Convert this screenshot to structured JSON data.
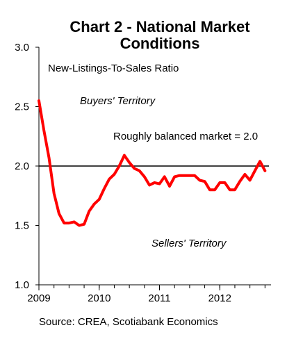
{
  "title_line1": "Chart 2 - National Market",
  "title_line2": "Conditions",
  "source": "Source: CREA, Scotiabank Economics",
  "chart_data": {
    "type": "line",
    "title": "Chart 2 - National Market Conditions",
    "xlabel": "",
    "ylabel": "",
    "ylim": [
      1.0,
      3.0
    ],
    "xlim": [
      2009.0,
      2012.85
    ],
    "y_ticks": [
      "1.0",
      "1.5",
      "2.0",
      "2.5",
      "3.0"
    ],
    "x_ticks": [
      "2009",
      "2010",
      "2011",
      "2012"
    ],
    "grid": false,
    "annotations": {
      "series_label": "New-Listings-To-Sales Ratio",
      "buyers": "Buyers' Territory",
      "balanced": "Roughly balanced market = 2.0",
      "sellers": "Sellers' Territory"
    },
    "reference_line": {
      "y": 2.0,
      "color": "#000000"
    },
    "series": [
      {
        "color": "#ff0000",
        "x": [
          2009.0,
          2009.083,
          2009.167,
          2009.25,
          2009.333,
          2009.417,
          2009.5,
          2009.583,
          2009.667,
          2009.75,
          2009.833,
          2009.917,
          2010.0,
          2010.083,
          2010.167,
          2010.25,
          2010.333,
          2010.417,
          2010.5,
          2010.583,
          2010.667,
          2010.75,
          2010.833,
          2010.917,
          2011.0,
          2011.083,
          2011.167,
          2011.25,
          2011.333,
          2011.417,
          2011.5,
          2011.583,
          2011.667,
          2011.75,
          2011.833,
          2011.917,
          2012.0,
          2012.083,
          2012.167,
          2012.25,
          2012.333,
          2012.417,
          2012.5,
          2012.583,
          2012.667,
          2012.75
        ],
        "values": [
          2.55,
          2.3,
          2.07,
          1.77,
          1.6,
          1.52,
          1.52,
          1.53,
          1.5,
          1.51,
          1.62,
          1.68,
          1.72,
          1.81,
          1.89,
          1.93,
          2.0,
          2.09,
          2.03,
          1.98,
          1.96,
          1.91,
          1.84,
          1.86,
          1.85,
          1.91,
          1.83,
          1.91,
          1.92,
          1.92,
          1.92,
          1.92,
          1.88,
          1.87,
          1.8,
          1.8,
          1.86,
          1.86,
          1.8,
          1.8,
          1.87,
          1.93,
          1.88,
          1.96,
          2.04,
          1.96
        ]
      }
    ]
  }
}
